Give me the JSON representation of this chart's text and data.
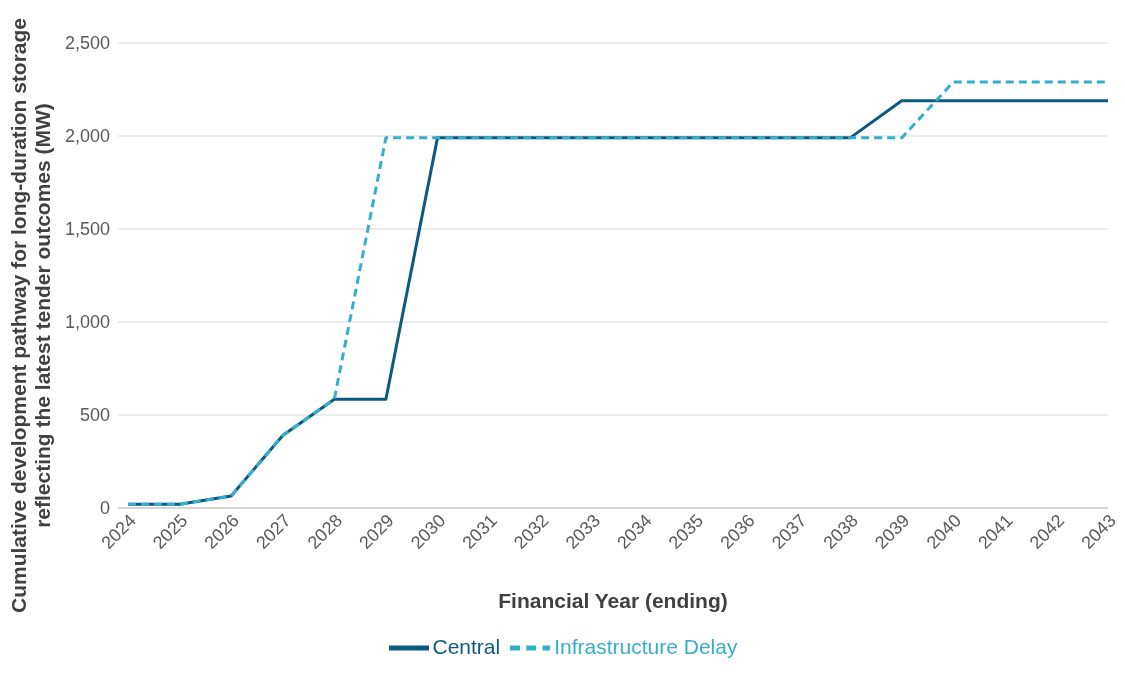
{
  "chart_data": {
    "type": "line",
    "xlabel": "Financial Year (ending)",
    "ylabel": "Cumulative development pathway for long-duration storage reflecting the latest tender outcomes  (MW)",
    "categories": [
      "2024",
      "2025",
      "2026",
      "2027",
      "2028",
      "2029",
      "2030",
      "2031",
      "2032",
      "2033",
      "2034",
      "2035",
      "2036",
      "2037",
      "2038",
      "2039",
      "2040",
      "2041",
      "2042",
      "2043"
    ],
    "series": [
      {
        "name": "Central",
        "color": "#0b5a80",
        "line_style": "solid",
        "values": [
          20,
          20,
          65,
          390,
          585,
          585,
          1990,
          1990,
          1990,
          1990,
          1990,
          1990,
          1990,
          1990,
          1990,
          2190,
          2190,
          2190,
          2190,
          2190
        ]
      },
      {
        "name": "Infrastructure Delay",
        "color": "#35aecb",
        "line_style": "dashed",
        "values": [
          20,
          20,
          65,
          390,
          585,
          1990,
          1990,
          1990,
          1990,
          1990,
          1990,
          1990,
          1990,
          1990,
          1990,
          1990,
          2290,
          2290,
          2290,
          2290
        ]
      }
    ],
    "ylim": [
      0,
      2500
    ],
    "yticks": [
      {
        "value": 0,
        "label": "0"
      },
      {
        "value": 500,
        "label": "500"
      },
      {
        "value": 1000,
        "label": "1,000"
      },
      {
        "value": 1500,
        "label": "1,500"
      },
      {
        "value": 2000,
        "label": "2,000"
      },
      {
        "value": 2500,
        "label": "2,500"
      }
    ],
    "grid": "y",
    "legend": "bottom",
    "marker": "none"
  }
}
